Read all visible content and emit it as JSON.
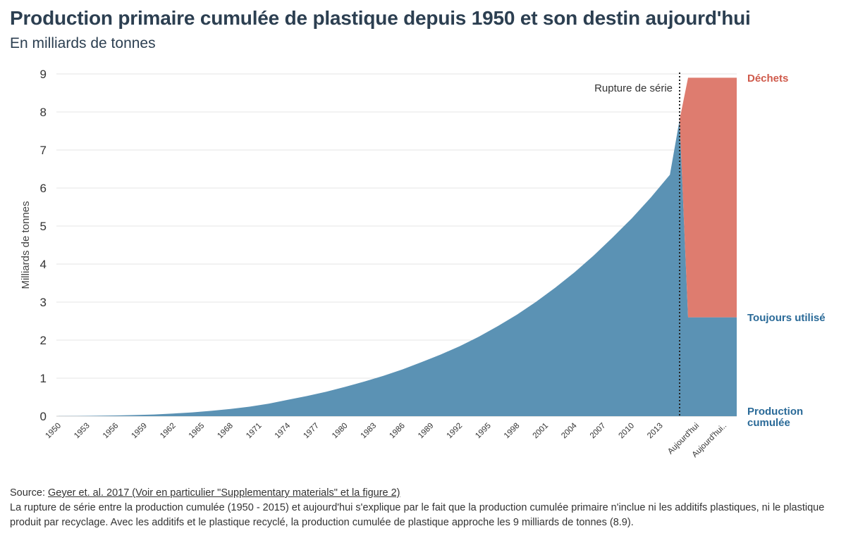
{
  "header": {
    "title": "Production primaire cumulée de plastique depuis 1950 et son destin aujourd'hui",
    "subtitle": "En milliards de tonnes"
  },
  "footer": {
    "source_prefix": "Source: ",
    "source_link": "Geyer et. al. 2017 (Voir en particulier \"Supplementary materials\" et la figure 2)",
    "note": "La rupture de série entre la production cumulée (1950 - 2015) et aujourd'hui s'explique par le fait que la production cumulée primaire n'inclue ni les additifs plastiques, ni le plastique produit par recyclage. Avec les additifs et le plastique recyclé, la production cumulée de plastique approche les 9 milliards de tonnes (8.9)."
  },
  "colors": {
    "production": "#5b92b4",
    "dechets": "#de7c6f",
    "toujours": "#5b92b4",
    "label_dechets": "#cf5a4b",
    "label_blue": "#2a6a98",
    "grid": "#e6e6e6"
  },
  "chart_data": {
    "type": "area",
    "title": "Production primaire cumulée de plastique depuis 1950 et son destin aujourd'hui",
    "subtitle": "En milliards de tonnes",
    "ylabel": "Milliards de tonnes",
    "xlabel": "",
    "ylim": [
      0,
      9
    ],
    "yticks": [
      "0",
      "1",
      "2",
      "3",
      "4",
      "5",
      "6",
      "7",
      "8",
      "9"
    ],
    "grid": true,
    "x_tick_labels": [
      "1950",
      "1953",
      "1956",
      "1959",
      "1962",
      "1965",
      "1968",
      "1971",
      "1974",
      "1977",
      "1980",
      "1983",
      "1986",
      "1989",
      "1992",
      "1995",
      "1998",
      "2001",
      "2004",
      "2007",
      "2010",
      "2013",
      "Aujourd'hui",
      "Aujourd'hui.."
    ],
    "series": [
      {
        "name": "Production cumulée",
        "x": [
          1950,
          1952,
          1954,
          1956,
          1958,
          1960,
          1962,
          1964,
          1966,
          1968,
          1970,
          1972,
          1974,
          1976,
          1978,
          1980,
          1982,
          1984,
          1986,
          1988,
          1990,
          1992,
          1994,
          1996,
          1998,
          2000,
          2002,
          2004,
          2006,
          2008,
          2010,
          2012,
          2014,
          2015
        ],
        "values": [
          0.002,
          0.006,
          0.011,
          0.018,
          0.03,
          0.045,
          0.07,
          0.1,
          0.14,
          0.19,
          0.25,
          0.33,
          0.43,
          0.53,
          0.64,
          0.77,
          0.91,
          1.06,
          1.23,
          1.42,
          1.62,
          1.84,
          2.09,
          2.37,
          2.67,
          3.01,
          3.38,
          3.78,
          4.22,
          4.7,
          5.2,
          5.75,
          6.35,
          7.8
        ]
      },
      {
        "name": "Toujours utilisé",
        "x": [
          "Aujourd'hui",
          "Aujourd'hui.."
        ],
        "values": [
          2.6,
          2.6
        ]
      },
      {
        "name": "Déchets",
        "x": [
          "Aujourd'hui",
          "Aujourd'hui.."
        ],
        "values": [
          6.3,
          6.3
        ]
      }
    ],
    "total_today": 8.9,
    "annotations": [
      {
        "text": "Rupture de série",
        "x": "2015/Aujourd'hui"
      }
    ],
    "legend": [
      "Déchets",
      "Toujours utilisé",
      "Production cumulée"
    ],
    "legend_placement": "right"
  }
}
